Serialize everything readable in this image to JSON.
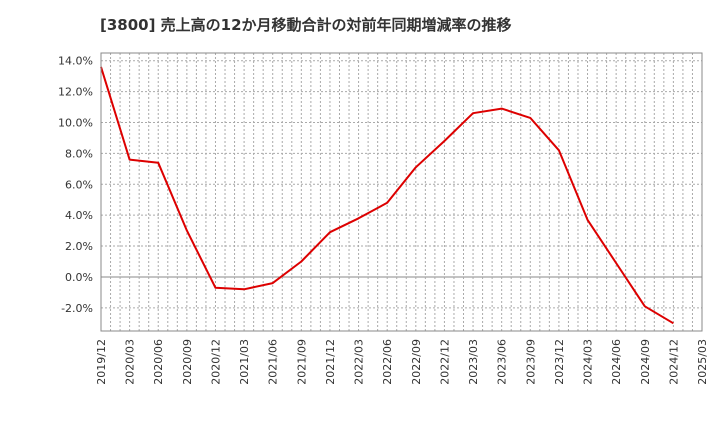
{
  "chart_data": {
    "type": "line",
    "title": "[3800]  売上高の12か月移動合計の対前年同期増減率の推移",
    "xlabel": "",
    "ylabel": "",
    "ylim": [
      -3.5,
      14.5
    ],
    "y_ticks": [
      -2.0,
      0.0,
      2.0,
      4.0,
      6.0,
      8.0,
      10.0,
      12.0,
      14.0
    ],
    "y_tick_labels": [
      "-2.0%",
      "0.0%",
      "2.0%",
      "4.0%",
      "6.0%",
      "8.0%",
      "10.0%",
      "12.0%",
      "14.0%"
    ],
    "categories": [
      "2019/12",
      "2020/03",
      "2020/06",
      "2020/09",
      "2020/12",
      "2021/03",
      "2021/06",
      "2021/09",
      "2021/12",
      "2022/03",
      "2022/06",
      "2022/09",
      "2022/12",
      "2023/03",
      "2023/06",
      "2023/09",
      "2023/12",
      "2024/03",
      "2024/06",
      "2024/09",
      "2024/12",
      "2025/03"
    ],
    "grid": true,
    "series": [
      {
        "name": "対前年同期増減率",
        "color": "#dd0000",
        "values": [
          13.6,
          7.6,
          7.4,
          3.0,
          -0.7,
          -0.8,
          -0.4,
          1.0,
          2.9,
          3.8,
          4.8,
          7.1,
          8.8,
          10.6,
          10.9,
          10.3,
          8.2,
          3.7,
          0.9,
          -1.9,
          -3.0,
          null
        ]
      }
    ]
  }
}
